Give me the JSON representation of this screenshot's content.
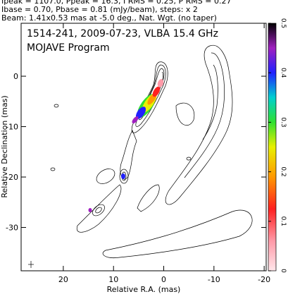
{
  "chart_data": {
    "type": "contour",
    "notes": [
      "Ipeak = 1107.0, Ppeak = 16.3, I RMS = 0.25, P RMS = 0.27",
      "Ibase = 0.70, Pbase = 0.81 (mJy/beam), steps: x 2",
      "Beam: 1.41x0.53 mas at -5.0 deg., Nat. Wgt. (no taper)"
    ],
    "title": "1514-241, 2009-07-23, VLBA 15.4 GHz",
    "subtitle": "MOJAVE Program",
    "xlabel": "Relative R.A. (mas)",
    "ylabel": "Relative Declination (mas)",
    "xlim": [
      28.4,
      -20.4
    ],
    "ylim": [
      -38.6,
      10.5
    ],
    "xticks": [
      20,
      10,
      0,
      -10,
      -20
    ],
    "yticks": [
      0,
      -10,
      -20,
      -30
    ],
    "colorbar": {
      "lim": [
        0,
        0.5
      ],
      "ticks": [
        0,
        0.1,
        0.2,
        0.3,
        0.4,
        0.5
      ]
    }
  }
}
